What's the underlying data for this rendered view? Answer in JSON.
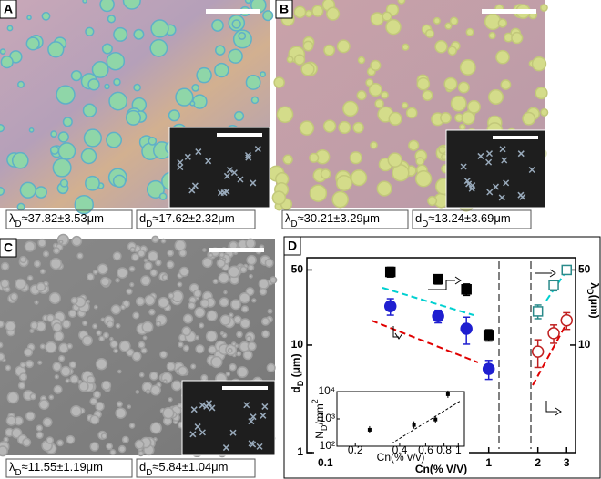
{
  "panels": [
    {
      "label": "A",
      "lambda": {
        "symbol": "λ",
        "sub": "D",
        "value": "≈37.82±3.53μm"
      },
      "d": {
        "symbol": "d",
        "sub": "D",
        "value": "≈17.62±2.32μm"
      }
    },
    {
      "label": "B",
      "lambda": {
        "symbol": "λ",
        "sub": "D",
        "value": "≈30.21±3.29μm"
      },
      "d": {
        "symbol": "d",
        "sub": "D",
        "value": "≈13.24±3.69μm"
      }
    },
    {
      "label": "C",
      "lambda": {
        "symbol": "λ",
        "sub": "D",
        "value": "≈11.55±1.19μm"
      },
      "d": {
        "symbol": "d",
        "sub": "D",
        "value": "≈5.84±1.04μm"
      }
    }
  ],
  "chart_data": {
    "type": "scatter",
    "label": "D",
    "xlabel": "Cn(% V/V)",
    "ylabel": {
      "symbol": "d",
      "sub": "D",
      "unit": " (μm)"
    },
    "y2label": {
      "symbol": "λ",
      "sub": "D",
      "unit": "(μm)"
    },
    "log_x": true,
    "log_y": true,
    "xlim": [
      0.077,
      3.4
    ],
    "xticks": [
      0.1,
      1,
      2,
      3
    ],
    "ylim": [
      1,
      65
    ],
    "yticks": [
      1,
      10,
      50
    ],
    "y2lim": [
      1,
      65
    ],
    "y2ticks": [
      10,
      50
    ],
    "series": [
      {
        "color": "#000000",
        "marker": "square",
        "filled": true,
        "axis": "y2",
        "x": [
          0.25,
          0.49,
          0.73,
          1.0
        ],
        "values": [
          48,
          41,
          33,
          12.4
        ],
        "errors": [
          5,
          4,
          4,
          1.5
        ]
      },
      {
        "color": "#1f1fd0",
        "marker": "circle",
        "filled": true,
        "axis": "y",
        "x": [
          0.25,
          0.49,
          0.73,
          1.0
        ],
        "values": [
          23,
          18.6,
          14.2,
          6
        ],
        "errors": [
          4,
          2.5,
          4,
          1.2
        ]
      },
      {
        "color": "#2a8a8a",
        "marker": "square",
        "filled": false,
        "axis": "y2",
        "x": [
          2,
          2.5,
          3
        ],
        "values": [
          20.6,
          36,
          50
        ],
        "errors": [
          3,
          4,
          4
        ]
      },
      {
        "color": "#c02020",
        "marker": "circle",
        "filled": false,
        "axis": "y",
        "x": [
          2,
          2.5,
          3
        ],
        "values": [
          8.7,
          12.9,
          17
        ],
        "errors": [
          2.5,
          2.5,
          3
        ]
      }
    ],
    "inset": {
      "xlabel": "Cn(% v/v)",
      "ylabel": {
        "symbol": "N",
        "sub": "D",
        "unit": "/mm",
        "sup": "2"
      },
      "xlim": [
        0.15,
        1.1
      ],
      "xticks": [
        0.2,
        0.4,
        0.6,
        0.8,
        1
      ],
      "ylim": [
        100,
        10000
      ],
      "yticks": [
        {
          "value": 100,
          "label": "10²"
        },
        {
          "value": 1000,
          "label": "10³"
        },
        {
          "value": 10000,
          "label": "10⁴"
        }
      ],
      "x": [
        0.25,
        0.5,
        0.7,
        0.85
      ],
      "values": [
        400,
        600,
        950,
        8000
      ]
    }
  }
}
